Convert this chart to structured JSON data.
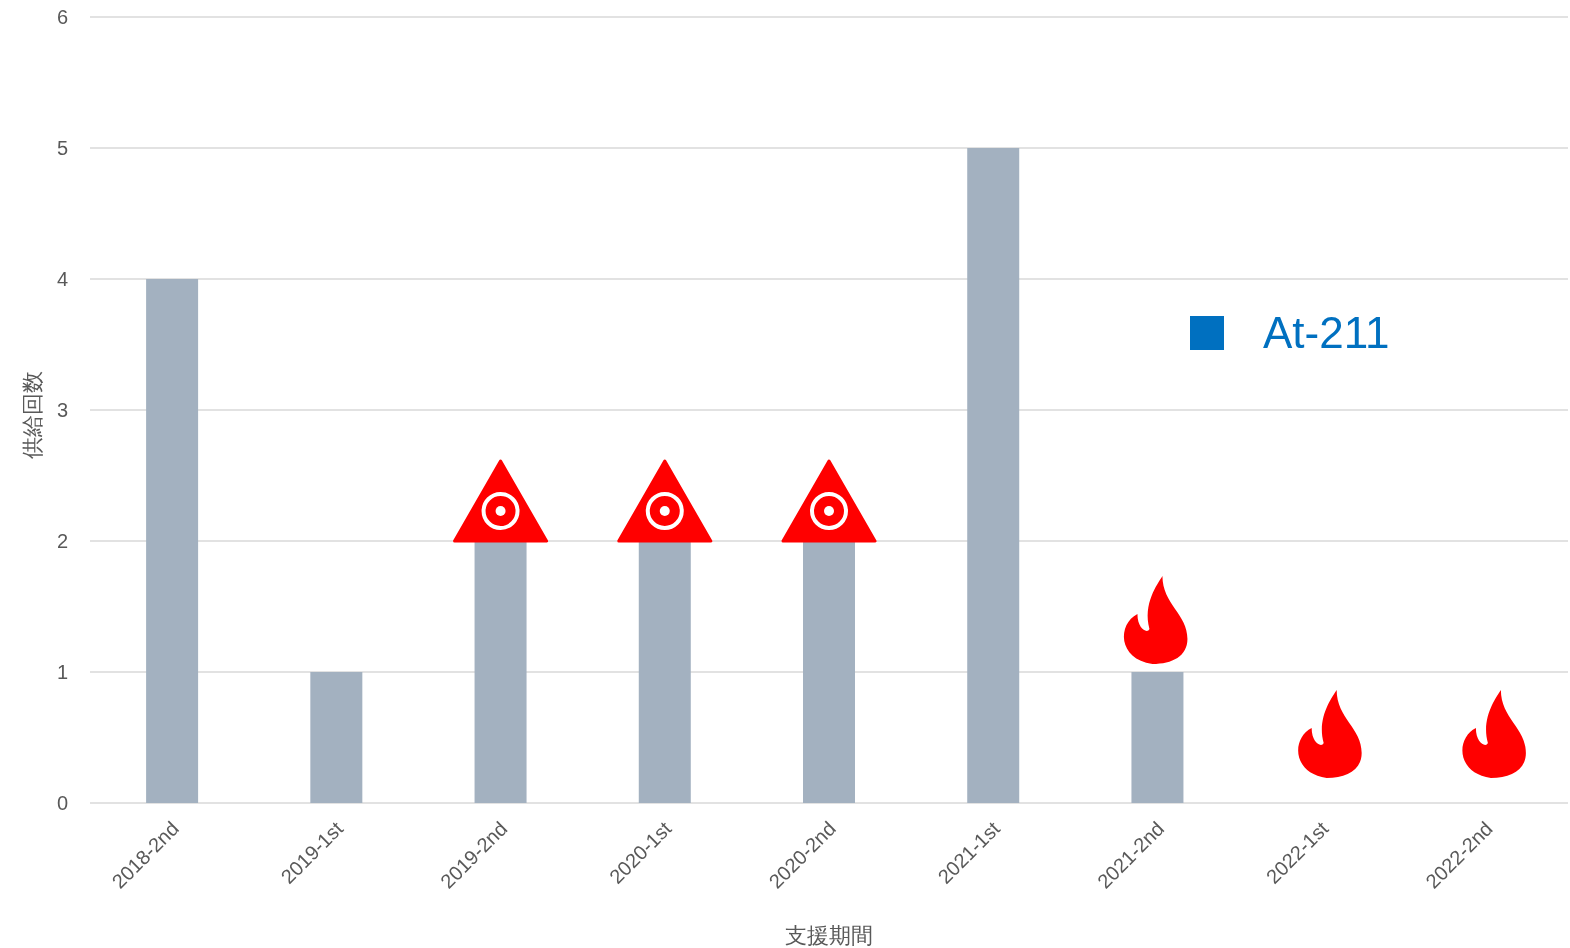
{
  "chart_data": {
    "type": "bar",
    "xlabel": "支援期間",
    "ylabel": "供給回数",
    "categories": [
      "2018-2nd",
      "2019-1st",
      "2019-2nd",
      "2020-1st",
      "2020-2nd",
      "2021-1st",
      "2021-2nd",
      "2022-1st",
      "2022-2nd"
    ],
    "values": [
      4,
      1,
      2,
      2,
      2,
      5,
      1,
      0,
      0
    ],
    "color": "#a3b1c0",
    "ylim": [
      0,
      6
    ],
    "yticks": [
      0,
      1,
      2,
      3,
      4,
      5,
      6
    ],
    "grid": "y",
    "annotations": [
      "At-211"
    ]
  }
}
